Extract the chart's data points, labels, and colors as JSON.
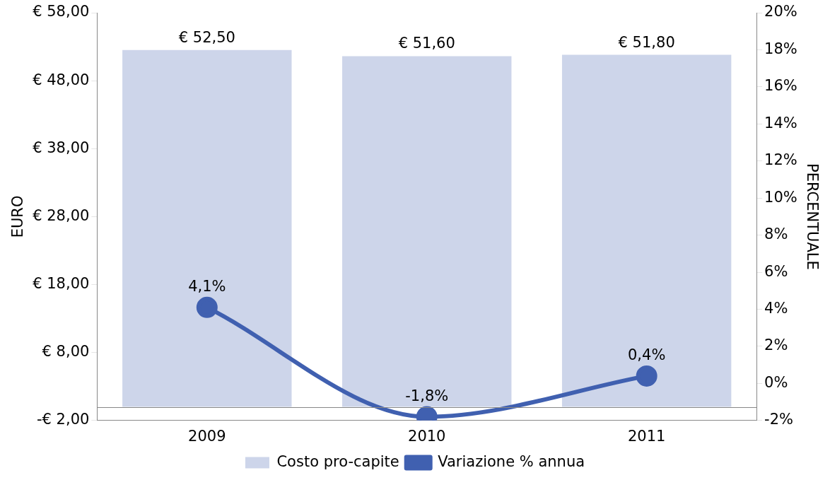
{
  "chart_data": {
    "type": "bar",
    "categories": [
      "2009",
      "2010",
      "2011"
    ],
    "series": [
      {
        "name": "Costo pro-capite",
        "color": "#cdd5ea",
        "values": [
          52.5,
          51.6,
          51.8
        ],
        "value_labels": [
          "€ 52,50",
          "€ 51,60",
          "€ 51,80"
        ]
      },
      {
        "name": "Variazione % annua",
        "type": "line",
        "axis": "y2",
        "color": "#4060b0",
        "values": [
          4.1,
          -1.8,
          0.4
        ],
        "value_labels": [
          "4,1%",
          "-1,8%",
          "0,4%"
        ]
      }
    ],
    "ylabel": "EURO",
    "y2label": "PERCENTUALE",
    "ylim": [
      -2,
      58
    ],
    "yticks": [
      {
        "value": -2,
        "label": "-€ 2,00"
      },
      {
        "value": 8,
        "label": "€ 8,00"
      },
      {
        "value": 18,
        "label": "€ 18,00"
      },
      {
        "value": 28,
        "label": "€ 28,00"
      },
      {
        "value": 38,
        "label": "€ 38,00"
      },
      {
        "value": 48,
        "label": "€ 48,00"
      },
      {
        "value": 58,
        "label": "€ 58,00"
      }
    ],
    "y2lim": [
      -2,
      20
    ],
    "y2ticks": [
      {
        "value": -2,
        "label": "-2%"
      },
      {
        "value": 0,
        "label": "0%"
      },
      {
        "value": 2,
        "label": "2%"
      },
      {
        "value": 4,
        "label": "4%"
      },
      {
        "value": 6,
        "label": "6%"
      },
      {
        "value": 8,
        "label": "8%"
      },
      {
        "value": 10,
        "label": "10%"
      },
      {
        "value": 12,
        "label": "12%"
      },
      {
        "value": 14,
        "label": "14%"
      },
      {
        "value": 16,
        "label": "16%"
      },
      {
        "value": 18,
        "label": "18%"
      },
      {
        "value": 20,
        "label": "20%"
      }
    ],
    "grid": false,
    "legend": "bottom",
    "marker": "circle",
    "line_style": "solid"
  }
}
